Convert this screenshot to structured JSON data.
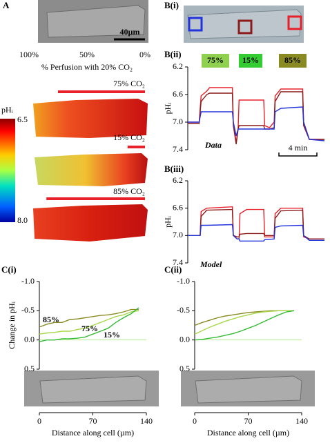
{
  "panel_labels": [
    "A",
    "B(i)",
    "B(ii)",
    "B(iii)",
    "C(i)",
    "C(ii)"
  ],
  "scale_bar": "40µm",
  "chart_data": [
    {
      "type": "perfusion",
      "xlabel": "% Perfusion with 20% CO₂",
      "xlim": [
        100,
        0
      ],
      "xticks": [
        {
          "value": 100,
          "label": "100%"
        },
        {
          "value": 50,
          "label": "50%"
        },
        {
          "value": 0,
          "label": "0%"
        }
      ],
      "categories": [
        "75% CO₂",
        "15% CO₂",
        "85% CO₂"
      ],
      "values": [
        75,
        15,
        85
      ],
      "color": "#e8202a",
      "colorbar": {
        "label": "pHᵢ",
        "ticks": [
          6.5,
          {
            "value": 8,
            "label": "8.0"
          }
        ]
      }
    },
    {
      "type": "line",
      "ylabel": "pHᵢ",
      "annotation": "Data",
      "ylim": [
        6.2,
        7.4
      ],
      "inverted": true,
      "yticks": [
        6.2,
        6.6,
        {
          "value": 7,
          "label": "7.0"
        },
        7.4
      ],
      "xlim": [
        0,
        14.4
      ],
      "x": [
        0,
        1.2,
        1.4,
        2.0,
        2.3,
        4.7,
        4.8,
        5.1,
        5.3,
        5.4,
        8.0,
        8.1,
        8.6,
        9.1,
        9.2,
        9.8,
        12.1,
        12.2,
        12.8,
        14.4
      ],
      "conditions": [
        {
          "label": "75%",
          "color": "#8fd14f"
        },
        {
          "label": "15%",
          "color": "#33cc33"
        },
        {
          "label": "85%",
          "color": "#8a8a22"
        }
      ],
      "scale_bar": {
        "value": 4,
        "label": "4 min"
      },
      "series": [
        {
          "color": "#e8202a",
          "values": [
            7.0,
            7.0,
            6.62,
            6.55,
            6.5,
            6.5,
            7.0,
            7.3,
            7.1,
            6.68,
            6.68,
            7.05,
            7.08,
            7.0,
            6.62,
            6.52,
            6.52,
            7.0,
            7.25,
            7.25
          ]
        },
        {
          "color": "#8b1a1a",
          "values": [
            7.02,
            7.02,
            6.7,
            6.6,
            6.58,
            6.58,
            7.05,
            7.32,
            7.1,
            7.05,
            7.05,
            7.1,
            7.1,
            7.08,
            6.7,
            6.56,
            6.56,
            7.05,
            7.25,
            7.25
          ]
        },
        {
          "color": "#2233dd",
          "values": [
            7.0,
            7.0,
            6.85,
            6.85,
            6.85,
            6.85,
            7.0,
            7.2,
            7.1,
            7.1,
            7.1,
            7.1,
            7.1,
            7.1,
            6.85,
            6.8,
            6.78,
            7.0,
            7.25,
            7.27
          ]
        }
      ]
    },
    {
      "type": "line",
      "ylabel": "pHᵢ",
      "annotation": "Model",
      "ylim": [
        6.2,
        7.4
      ],
      "inverted": true,
      "yticks": [
        6.2,
        6.6,
        {
          "value": 7,
          "label": "7.0"
        },
        7.4
      ],
      "xlim": [
        0,
        14.4
      ],
      "x": [
        0,
        1.3,
        1.4,
        2.0,
        4.7,
        4.8,
        5.2,
        5.4,
        5.5,
        6.2,
        8.0,
        8.1,
        9.1,
        9.2,
        9.8,
        12.1,
        12.2,
        12.8,
        14.4
      ],
      "series": [
        {
          "color": "#e8202a",
          "values": [
            7.0,
            7.0,
            6.65,
            6.6,
            6.58,
            7.0,
            7.05,
            7.05,
            6.68,
            6.62,
            6.62,
            7.02,
            7.02,
            6.68,
            6.6,
            6.6,
            7.02,
            7.05,
            7.05
          ]
        },
        {
          "color": "#8b1a1a",
          "values": [
            7.0,
            7.0,
            6.72,
            6.63,
            6.62,
            7.0,
            7.02,
            7.02,
            6.98,
            6.97,
            6.97,
            7.0,
            7.0,
            6.75,
            6.64,
            6.63,
            7.0,
            7.05,
            7.05
          ]
        },
        {
          "color": "#2233dd",
          "values": [
            7.0,
            7.0,
            6.85,
            6.85,
            6.84,
            7.0,
            7.05,
            7.05,
            7.08,
            7.08,
            7.08,
            7.06,
            7.05,
            6.88,
            6.86,
            6.85,
            7.0,
            7.07,
            7.07
          ]
        }
      ]
    },
    {
      "type": "line",
      "ylabel": "Change in pHᵢ",
      "xlabel": "Distance along cell (µm)",
      "ylim": [
        -1,
        0.5
      ],
      "inverted": true,
      "yticks": [
        {
          "value": -1,
          "label": "-1.0"
        },
        {
          "value": -0.5,
          "label": "-0.5"
        },
        {
          "value": 0,
          "label": "0.0"
        },
        0.5
      ],
      "xlim": [
        0,
        140
      ],
      "xticks": [
        0,
        70,
        140
      ],
      "zero_line": true,
      "x": [
        0,
        10,
        20,
        30,
        40,
        50,
        60,
        70,
        80,
        90,
        100,
        110,
        120,
        130
      ],
      "series": [
        {
          "name": "85%",
          "color": "#8a8a22",
          "values": [
            -0.22,
            -0.27,
            -0.3,
            -0.3,
            -0.35,
            -0.36,
            -0.38,
            -0.4,
            -0.42,
            -0.43,
            -0.45,
            -0.48,
            -0.52,
            -0.52
          ]
        },
        {
          "name": "75%",
          "color": "#a8d84a",
          "values": [
            -0.1,
            -0.12,
            -0.13,
            -0.15,
            -0.15,
            -0.18,
            -0.2,
            -0.25,
            -0.3,
            -0.35,
            -0.4,
            -0.43,
            -0.48,
            -0.5
          ]
        },
        {
          "name": "15%",
          "color": "#33bb33",
          "values": [
            0.03,
            0.0,
            0.0,
            -0.02,
            -0.02,
            -0.03,
            -0.05,
            -0.1,
            -0.15,
            -0.2,
            -0.3,
            -0.38,
            -0.45,
            -0.55
          ]
        }
      ]
    },
    {
      "type": "line",
      "xlabel": "Distance along cell (µm)",
      "ylim": [
        -1,
        0.5
      ],
      "inverted": true,
      "yticks": [
        {
          "value": -1,
          "label": "-1.0"
        },
        {
          "value": -0.5,
          "label": "-0.5"
        },
        {
          "value": 0,
          "label": "0.0"
        },
        0.5
      ],
      "xlim": [
        0,
        140
      ],
      "xticks": [
        0,
        70,
        140
      ],
      "zero_line": true,
      "x": [
        0,
        10,
        20,
        30,
        40,
        50,
        60,
        70,
        80,
        90,
        100,
        110,
        120,
        130
      ],
      "series": [
        {
          "color": "#8a8a22",
          "values": [
            -0.25,
            -0.3,
            -0.34,
            -0.38,
            -0.41,
            -0.43,
            -0.45,
            -0.47,
            -0.48,
            -0.49,
            -0.5,
            -0.5,
            -0.5,
            -0.5
          ]
        },
        {
          "color": "#a8d84a",
          "values": [
            -0.1,
            -0.16,
            -0.22,
            -0.27,
            -0.32,
            -0.36,
            -0.4,
            -0.43,
            -0.46,
            -0.48,
            -0.49,
            -0.5,
            -0.5,
            -0.5
          ]
        },
        {
          "color": "#33bb33",
          "values": [
            0,
            -0.01,
            -0.03,
            -0.05,
            -0.08,
            -0.11,
            -0.15,
            -0.2,
            -0.25,
            -0.31,
            -0.37,
            -0.43,
            -0.48,
            -0.5
          ]
        }
      ]
    }
  ]
}
